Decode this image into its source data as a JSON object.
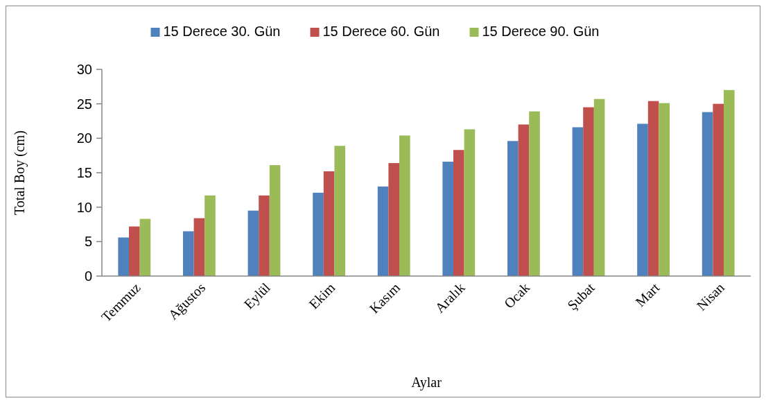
{
  "chart_data": {
    "type": "bar",
    "xlabel": "Aylar",
    "ylabel": "Total Boy (cm)",
    "categories": [
      "Temmuz",
      "Ağustos",
      "Eylül",
      "Ekim",
      "Kasım",
      "Aralık",
      "Ocak",
      "Şubat",
      "Mart",
      "Nisan"
    ],
    "series": [
      {
        "name": "15 Derece 30. Gün",
        "color": "#4f81bd",
        "values": [
          5.6,
          6.5,
          9.5,
          12.1,
          13.0,
          16.6,
          19.6,
          21.6,
          22.1,
          23.8
        ]
      },
      {
        "name": "15 Derece 60. Gün",
        "color": "#c0504d",
        "values": [
          7.2,
          8.4,
          11.7,
          15.2,
          16.4,
          18.3,
          22.0,
          24.5,
          25.4,
          25.0
        ]
      },
      {
        "name": "15 Derece 90. Gün",
        "color": "#9bbb59",
        "values": [
          8.3,
          11.7,
          16.1,
          18.9,
          20.4,
          21.3,
          23.9,
          25.7,
          25.1,
          27.0
        ]
      }
    ],
    "ylim": [
      0,
      30
    ],
    "yticks": [
      0,
      5,
      10,
      15,
      20,
      25,
      30
    ],
    "grid": false,
    "legend": "top"
  }
}
